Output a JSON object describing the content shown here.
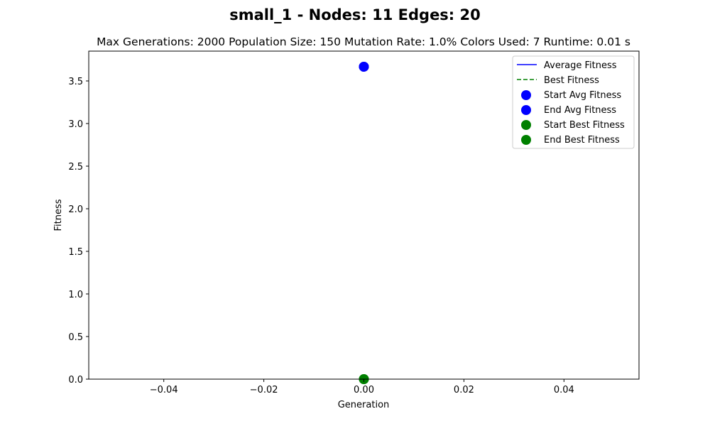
{
  "chart_data": {
    "type": "line",
    "title": "small_1 - Nodes: 11 Edges: 20",
    "subtitle": "Max Generations: 2000  Population Size: 150  Mutation Rate: 1.0%  Colors Used: 7  Runtime: 0.01 s",
    "xlabel": "Generation",
    "ylabel": "Fitness",
    "xlim": [
      -0.055,
      0.055
    ],
    "ylim": [
      0,
      3.85
    ],
    "xticks": [
      -0.04,
      -0.02,
      0.0,
      0.02,
      0.04
    ],
    "xtick_labels": [
      "−0.04",
      "−0.02",
      "0.00",
      "0.02",
      "0.04"
    ],
    "yticks": [
      0.0,
      0.5,
      1.0,
      1.5,
      2.0,
      2.5,
      3.0,
      3.5
    ],
    "ytick_labels": [
      "0.0",
      "0.5",
      "1.0",
      "1.5",
      "2.0",
      "2.5",
      "3.0",
      "3.5"
    ],
    "grid": false,
    "legend_position": "upper right",
    "series": [
      {
        "name": "Average Fitness",
        "kind": "line",
        "dash": "solid",
        "color": "#0000ff",
        "x": [
          0
        ],
        "y": [
          3.667
        ]
      },
      {
        "name": "Best Fitness",
        "kind": "line",
        "dash": "dashed",
        "color": "#008000",
        "x": [
          0
        ],
        "y": [
          0.0
        ]
      },
      {
        "name": "Start Avg Fitness",
        "kind": "scatter",
        "color": "#0000ff",
        "x": [
          0
        ],
        "y": [
          3.667
        ]
      },
      {
        "name": "End Avg Fitness",
        "kind": "scatter",
        "color": "#0000ff",
        "x": [
          0
        ],
        "y": [
          3.667
        ]
      },
      {
        "name": "Start Best Fitness",
        "kind": "scatter",
        "color": "#008000",
        "x": [
          0
        ],
        "y": [
          0.0
        ]
      },
      {
        "name": "End Best Fitness",
        "kind": "scatter",
        "color": "#008000",
        "x": [
          0
        ],
        "y": [
          0.0
        ]
      }
    ]
  }
}
